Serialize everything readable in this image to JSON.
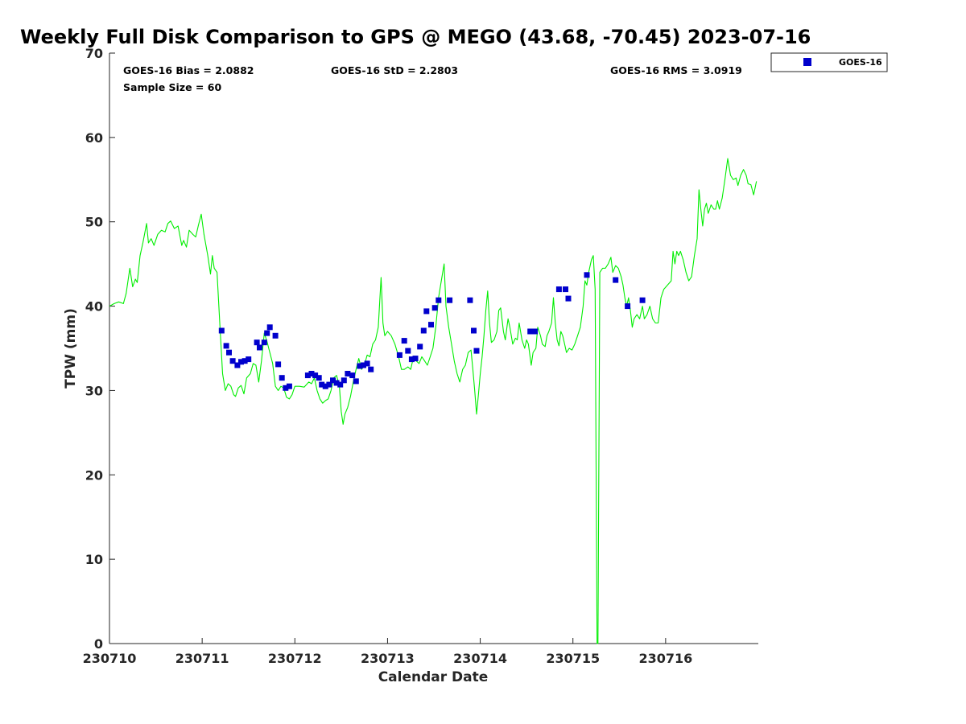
{
  "chart_data": {
    "type": "line",
    "title": "Weekly Full Disk Comparison to GPS @ MEGO (43.68, -70.45) 2023-07-16",
    "xlabel": "Calendar Date",
    "ylabel": "TPW (mm)",
    "xlim": [
      0,
      7
    ],
    "ylim": [
      0,
      70
    ],
    "yticks": [
      0,
      10,
      20,
      30,
      40,
      50,
      60,
      70
    ],
    "xticks": [
      {
        "value": 0,
        "label": "230710"
      },
      {
        "value": 1,
        "label": "230711"
      },
      {
        "value": 2,
        "label": "230712"
      },
      {
        "value": 3,
        "label": "230713"
      },
      {
        "value": 4,
        "label": "230714"
      },
      {
        "value": 5,
        "label": "230715"
      },
      {
        "value": 6,
        "label": "230716"
      }
    ],
    "grid": false,
    "legend": {
      "position": "top-right",
      "entries": [
        {
          "label": "GOES-16",
          "color": "#0000cc",
          "marker": "square"
        }
      ]
    },
    "stats": {
      "bias": "GOES-16 Bias = 2.0882",
      "std": "GOES-16 StD = 2.2803",
      "rms": "GOES-16 RMS = 3.0919",
      "sample": "Sample Size = 60"
    },
    "colors": {
      "gps_line": "#00ee00",
      "goes_marker": "#0000cc"
    },
    "gps_line": [
      [
        0.0,
        40.0
      ],
      [
        0.05,
        40.3
      ],
      [
        0.1,
        40.5
      ],
      [
        0.15,
        40.3
      ],
      [
        0.18,
        41.5
      ],
      [
        0.22,
        44.5
      ],
      [
        0.25,
        42.3
      ],
      [
        0.28,
        43.2
      ],
      [
        0.3,
        42.8
      ],
      [
        0.33,
        46.0
      ],
      [
        0.36,
        47.5
      ],
      [
        0.4,
        49.8
      ],
      [
        0.42,
        47.5
      ],
      [
        0.45,
        48.0
      ],
      [
        0.48,
        47.2
      ],
      [
        0.52,
        48.5
      ],
      [
        0.56,
        49.0
      ],
      [
        0.6,
        48.8
      ],
      [
        0.63,
        49.8
      ],
      [
        0.66,
        50.1
      ],
      [
        0.7,
        49.2
      ],
      [
        0.74,
        49.5
      ],
      [
        0.78,
        47.2
      ],
      [
        0.8,
        47.8
      ],
      [
        0.83,
        47.0
      ],
      [
        0.86,
        49.0
      ],
      [
        0.9,
        48.5
      ],
      [
        0.93,
        48.2
      ],
      [
        0.96,
        49.6
      ],
      [
        0.99,
        50.9
      ],
      [
        1.02,
        48.5
      ],
      [
        1.06,
        46.0
      ],
      [
        1.09,
        43.8
      ],
      [
        1.11,
        46.0
      ],
      [
        1.13,
        44.5
      ],
      [
        1.16,
        44.0
      ],
      [
        1.19,
        38.0
      ],
      [
        1.22,
        32.0
      ],
      [
        1.25,
        30.0
      ],
      [
        1.28,
        30.8
      ],
      [
        1.31,
        30.5
      ],
      [
        1.34,
        29.5
      ],
      [
        1.36,
        29.3
      ],
      [
        1.39,
        30.3
      ],
      [
        1.42,
        30.6
      ],
      [
        1.45,
        29.6
      ],
      [
        1.48,
        31.5
      ],
      [
        1.52,
        32.0
      ],
      [
        1.55,
        33.2
      ],
      [
        1.58,
        33.0
      ],
      [
        1.61,
        31.0
      ],
      [
        1.64,
        33.5
      ],
      [
        1.67,
        36.8
      ],
      [
        1.7,
        35.8
      ],
      [
        1.73,
        34.5
      ],
      [
        1.76,
        33.2
      ],
      [
        1.79,
        30.5
      ],
      [
        1.82,
        30.0
      ],
      [
        1.85,
        30.5
      ],
      [
        1.88,
        30.3
      ],
      [
        1.91,
        29.2
      ],
      [
        1.94,
        29.0
      ],
      [
        1.97,
        29.5
      ],
      [
        2.0,
        30.5
      ],
      [
        2.05,
        30.5
      ],
      [
        2.1,
        30.4
      ],
      [
        2.15,
        31.0
      ],
      [
        2.18,
        30.8
      ],
      [
        2.21,
        31.5
      ],
      [
        2.24,
        30.0
      ],
      [
        2.27,
        29.0
      ],
      [
        2.3,
        28.5
      ],
      [
        2.33,
        28.8
      ],
      [
        2.36,
        29.0
      ],
      [
        2.39,
        30.0
      ],
      [
        2.42,
        31.5
      ],
      [
        2.45,
        31.8
      ],
      [
        2.48,
        30.5
      ],
      [
        2.5,
        27.5
      ],
      [
        2.52,
        26.0
      ],
      [
        2.54,
        27.2
      ],
      [
        2.57,
        28.0
      ],
      [
        2.6,
        29.3
      ],
      [
        2.63,
        31.0
      ],
      [
        2.66,
        32.5
      ],
      [
        2.69,
        33.8
      ],
      [
        2.72,
        32.5
      ],
      [
        2.75,
        33.0
      ],
      [
        2.78,
        34.2
      ],
      [
        2.81,
        34.0
      ],
      [
        2.84,
        35.5
      ],
      [
        2.87,
        36.0
      ],
      [
        2.9,
        37.5
      ],
      [
        2.93,
        43.4
      ],
      [
        2.95,
        38.0
      ],
      [
        2.97,
        36.5
      ],
      [
        3.0,
        37.0
      ],
      [
        3.04,
        36.5
      ],
      [
        3.08,
        35.5
      ],
      [
        3.12,
        34.0
      ],
      [
        3.15,
        32.5
      ],
      [
        3.18,
        32.5
      ],
      [
        3.22,
        32.8
      ],
      [
        3.25,
        32.5
      ],
      [
        3.28,
        34.0
      ],
      [
        3.31,
        33.5
      ],
      [
        3.34,
        33.2
      ],
      [
        3.37,
        34.0
      ],
      [
        3.4,
        33.5
      ],
      [
        3.43,
        33.0
      ],
      [
        3.46,
        34.0
      ],
      [
        3.49,
        35.0
      ],
      [
        3.52,
        37.5
      ],
      [
        3.55,
        41.0
      ],
      [
        3.58,
        43.0
      ],
      [
        3.61,
        45.0
      ],
      [
        3.63,
        40.0
      ],
      [
        3.66,
        37.5
      ],
      [
        3.69,
        35.5
      ],
      [
        3.72,
        33.5
      ],
      [
        3.75,
        32.0
      ],
      [
        3.78,
        31.0
      ],
      [
        3.81,
        32.5
      ],
      [
        3.84,
        33.0
      ],
      [
        3.87,
        34.5
      ],
      [
        3.9,
        34.8
      ],
      [
        3.92,
        32.5
      ],
      [
        3.94,
        30.0
      ],
      [
        3.96,
        27.2
      ],
      [
        3.98,
        29.5
      ],
      [
        4.0,
        32.0
      ],
      [
        4.02,
        34.0
      ],
      [
        4.04,
        36.5
      ],
      [
        4.06,
        39.5
      ],
      [
        4.08,
        41.8
      ],
      [
        4.1,
        38.0
      ],
      [
        4.12,
        35.7
      ],
      [
        4.15,
        36.0
      ],
      [
        4.18,
        37.0
      ],
      [
        4.2,
        39.5
      ],
      [
        4.22,
        39.8
      ],
      [
        4.25,
        37.0
      ],
      [
        4.27,
        36.0
      ],
      [
        4.3,
        38.5
      ],
      [
        4.32,
        37.5
      ],
      [
        4.35,
        35.5
      ],
      [
        4.38,
        36.2
      ],
      [
        4.4,
        36.0
      ],
      [
        4.42,
        38.0
      ],
      [
        4.45,
        36.0
      ],
      [
        4.48,
        35.0
      ],
      [
        4.5,
        36.0
      ],
      [
        4.52,
        35.5
      ],
      [
        4.55,
        33.0
      ],
      [
        4.57,
        34.5
      ],
      [
        4.6,
        35.0
      ],
      [
        4.62,
        37.5
      ],
      [
        4.65,
        36.5
      ],
      [
        4.67,
        35.5
      ],
      [
        4.7,
        35.2
      ],
      [
        4.72,
        36.5
      ],
      [
        4.74,
        37.0
      ],
      [
        4.77,
        38.0
      ],
      [
        4.79,
        41.0
      ],
      [
        4.81,
        38.0
      ],
      [
        4.83,
        36.0
      ],
      [
        4.85,
        35.3
      ],
      [
        4.87,
        37.0
      ],
      [
        4.89,
        36.5
      ],
      [
        4.91,
        35.5
      ],
      [
        4.93,
        34.5
      ],
      [
        4.96,
        35.0
      ],
      [
        4.99,
        34.8
      ],
      [
        5.02,
        35.5
      ],
      [
        5.05,
        36.5
      ],
      [
        5.08,
        37.5
      ],
      [
        5.11,
        40.0
      ],
      [
        5.13,
        43.0
      ],
      [
        5.15,
        42.5
      ],
      [
        5.17,
        44.0
      ],
      [
        5.2,
        45.5
      ],
      [
        5.22,
        46.0
      ],
      [
        5.24,
        42.0
      ],
      [
        5.26,
        0.0
      ],
      [
        5.27,
        0.0
      ],
      [
        5.29,
        44.0
      ],
      [
        5.32,
        44.5
      ],
      [
        5.35,
        44.5
      ],
      [
        5.38,
        45.0
      ],
      [
        5.41,
        45.8
      ],
      [
        5.43,
        44.0
      ],
      [
        5.46,
        44.8
      ],
      [
        5.49,
        44.5
      ],
      [
        5.52,
        43.5
      ],
      [
        5.54,
        42.5
      ],
      [
        5.56,
        41.0
      ],
      [
        5.58,
        40.0
      ],
      [
        5.6,
        41.0
      ],
      [
        5.62,
        39.5
      ],
      [
        5.64,
        37.5
      ],
      [
        5.66,
        38.5
      ],
      [
        5.69,
        39.0
      ],
      [
        5.72,
        38.5
      ],
      [
        5.75,
        40.0
      ],
      [
        5.77,
        38.5
      ],
      [
        5.8,
        39.0
      ],
      [
        5.83,
        40.0
      ],
      [
        5.86,
        38.5
      ],
      [
        5.89,
        38.0
      ],
      [
        5.92,
        38.0
      ],
      [
        5.95,
        41.0
      ],
      [
        5.98,
        42.0
      ],
      [
        6.02,
        42.5
      ],
      [
        6.06,
        43.0
      ],
      [
        6.08,
        46.5
      ],
      [
        6.1,
        45.0
      ],
      [
        6.12,
        46.5
      ],
      [
        6.14,
        46.0
      ],
      [
        6.16,
        46.5
      ],
      [
        6.19,
        45.5
      ],
      [
        6.22,
        44.0
      ],
      [
        6.25,
        43.0
      ],
      [
        6.28,
        43.5
      ],
      [
        6.31,
        46.0
      ],
      [
        6.34,
        48.0
      ],
      [
        6.36,
        53.8
      ],
      [
        6.38,
        51.5
      ],
      [
        6.4,
        49.5
      ],
      [
        6.42,
        51.5
      ],
      [
        6.44,
        52.2
      ],
      [
        6.46,
        51.0
      ],
      [
        6.49,
        52.0
      ],
      [
        6.52,
        51.5
      ],
      [
        6.54,
        51.5
      ],
      [
        6.56,
        52.5
      ],
      [
        6.58,
        51.5
      ],
      [
        6.61,
        52.8
      ],
      [
        6.64,
        55.0
      ],
      [
        6.67,
        57.5
      ],
      [
        6.7,
        55.5
      ],
      [
        6.73,
        55.0
      ],
      [
        6.76,
        55.2
      ],
      [
        6.78,
        54.3
      ],
      [
        6.81,
        55.5
      ],
      [
        6.84,
        56.2
      ],
      [
        6.87,
        55.5
      ],
      [
        6.89,
        54.5
      ],
      [
        6.92,
        54.4
      ],
      [
        6.95,
        53.2
      ],
      [
        6.98,
        54.8
      ]
    ],
    "goes_points": [
      [
        1.21,
        37.1
      ],
      [
        1.26,
        35.3
      ],
      [
        1.29,
        34.5
      ],
      [
        1.33,
        33.5
      ],
      [
        1.38,
        33.0
      ],
      [
        1.42,
        33.4
      ],
      [
        1.46,
        33.5
      ],
      [
        1.5,
        33.7
      ],
      [
        1.59,
        35.7
      ],
      [
        1.62,
        35.1
      ],
      [
        1.67,
        35.7
      ],
      [
        1.7,
        36.8
      ],
      [
        1.73,
        37.5
      ],
      [
        1.79,
        36.5
      ],
      [
        1.82,
        33.1
      ],
      [
        1.86,
        31.5
      ],
      [
        1.9,
        30.3
      ],
      [
        1.94,
        30.5
      ],
      [
        2.14,
        31.8
      ],
      [
        2.18,
        32.0
      ],
      [
        2.22,
        31.8
      ],
      [
        2.26,
        31.5
      ],
      [
        2.29,
        30.7
      ],
      [
        2.33,
        30.5
      ],
      [
        2.37,
        30.7
      ],
      [
        2.41,
        31.2
      ],
      [
        2.45,
        30.9
      ],
      [
        2.49,
        30.7
      ],
      [
        2.53,
        31.2
      ],
      [
        2.57,
        32.0
      ],
      [
        2.62,
        31.8
      ],
      [
        2.66,
        31.1
      ],
      [
        2.7,
        32.9
      ],
      [
        2.74,
        33.0
      ],
      [
        2.78,
        33.2
      ],
      [
        2.82,
        32.5
      ],
      [
        3.13,
        34.2
      ],
      [
        3.18,
        35.9
      ],
      [
        3.22,
        34.7
      ],
      [
        3.26,
        33.7
      ],
      [
        3.3,
        33.8
      ],
      [
        3.35,
        35.2
      ],
      [
        3.39,
        37.1
      ],
      [
        3.42,
        39.4
      ],
      [
        3.47,
        37.8
      ],
      [
        3.51,
        39.8
      ],
      [
        3.55,
        40.7
      ],
      [
        3.67,
        40.7
      ],
      [
        3.89,
        40.7
      ],
      [
        3.93,
        37.1
      ],
      [
        3.96,
        34.7
      ],
      [
        4.54,
        37.0
      ],
      [
        4.59,
        37.0
      ],
      [
        4.85,
        42.0
      ],
      [
        4.92,
        42.0
      ],
      [
        4.95,
        40.9
      ],
      [
        5.15,
        43.7
      ],
      [
        5.46,
        43.1
      ],
      [
        5.59,
        40.0
      ],
      [
        5.75,
        40.7
      ]
    ]
  }
}
